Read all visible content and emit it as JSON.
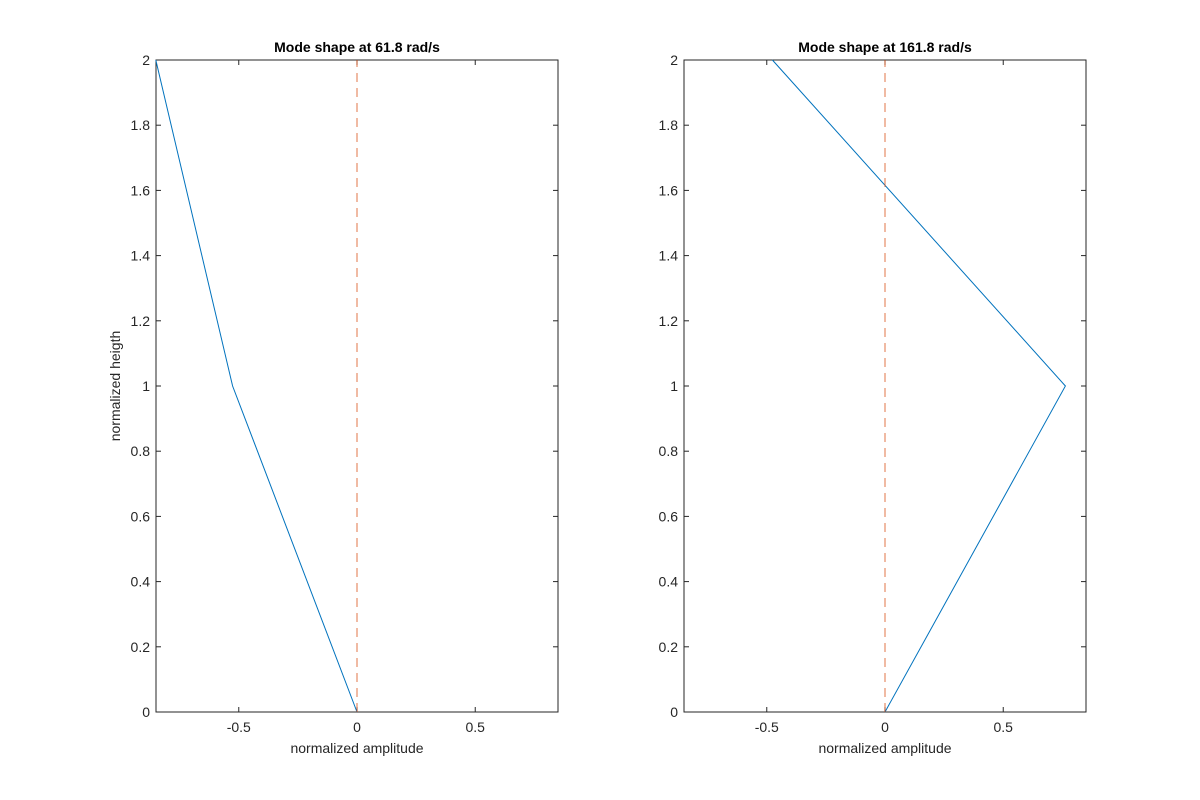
{
  "chart_data": [
    {
      "type": "line",
      "title": "Mode shape at 61.8 rad/s",
      "xlabel": "normalized amplitude",
      "ylabel": "normalized heigth",
      "xlim": [
        -0.85,
        0.85
      ],
      "ylim": [
        0,
        2
      ],
      "xticks": [
        "-0.5",
        "0",
        "0.5"
      ],
      "xtick_values": [
        -0.5,
        0,
        0.5
      ],
      "yticks": [
        "0",
        "0.2",
        "0.4",
        "0.6",
        "0.8",
        "1",
        "1.2",
        "1.4",
        "1.6",
        "1.8",
        "2"
      ],
      "ytick_values": [
        0,
        0.2,
        0.4,
        0.6,
        0.8,
        1,
        1.2,
        1.4,
        1.6,
        1.8,
        2
      ],
      "grid": false,
      "series": [
        {
          "x": [
            0,
            -0.526,
            -0.851
          ],
          "y": [
            0,
            1,
            2
          ],
          "color": "#0072bd",
          "style": "solid"
        },
        {
          "x": [
            0,
            0
          ],
          "y": [
            0,
            2
          ],
          "color": "#d95319",
          "style": "dashed"
        }
      ]
    },
    {
      "type": "line",
      "title": "Mode shape at 161.8 rad/s",
      "xlabel": "normalized amplitude",
      "ylabel": "",
      "xlim": [
        -0.85,
        0.85
      ],
      "ylim": [
        0,
        2
      ],
      "xticks": [
        "-0.5",
        "0",
        "0.5"
      ],
      "xtick_values": [
        -0.5,
        0,
        0.5
      ],
      "yticks": [
        "0",
        "0.2",
        "0.4",
        "0.6",
        "0.8",
        "1",
        "1.2",
        "1.4",
        "1.6",
        "1.8",
        "2"
      ],
      "ytick_values": [
        0,
        0.2,
        0.4,
        0.6,
        0.8,
        1,
        1.2,
        1.4,
        1.6,
        1.8,
        2
      ],
      "grid": false,
      "series": [
        {
          "x": [
            0,
            0.763,
            -0.476
          ],
          "y": [
            0,
            1,
            2
          ],
          "color": "#0072bd",
          "style": "solid"
        },
        {
          "x": [
            0,
            0
          ],
          "y": [
            0,
            2
          ],
          "color": "#d95319",
          "style": "dashed"
        }
      ]
    }
  ]
}
